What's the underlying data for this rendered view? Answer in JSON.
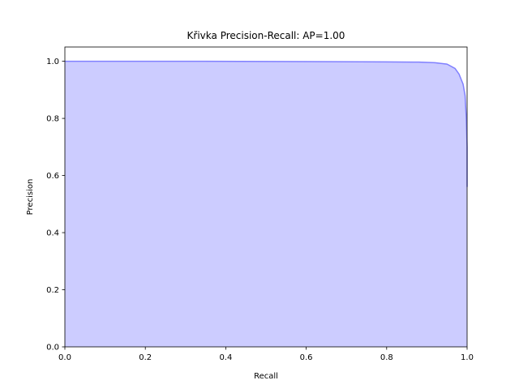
{
  "chart_data": {
    "type": "area",
    "title": "Křivka Precision-Recall: AP=1.00",
    "xlabel": "Recall",
    "ylabel": "Precision",
    "xlim": [
      0.0,
      1.0
    ],
    "ylim": [
      0.0,
      1.05
    ],
    "grid": false,
    "x_ticks": [
      "0.0",
      "0.2",
      "0.4",
      "0.6",
      "0.8",
      "1.0"
    ],
    "y_ticks": [
      "0.0",
      "0.2",
      "0.4",
      "0.6",
      "0.8",
      "1.0"
    ],
    "fill_color": "#ccccff",
    "line_color": "#8080ff",
    "series": [
      {
        "recall": [
          0.0,
          0.3,
          0.6,
          0.8,
          0.88,
          0.92,
          0.95,
          0.97,
          0.98,
          0.99,
          0.995,
          0.998,
          1.0,
          1.0
        ],
        "precision": [
          1.0,
          1.0,
          0.999,
          0.998,
          0.997,
          0.995,
          0.99,
          0.975,
          0.955,
          0.92,
          0.88,
          0.8,
          0.7,
          0.56
        ]
      }
    ]
  }
}
